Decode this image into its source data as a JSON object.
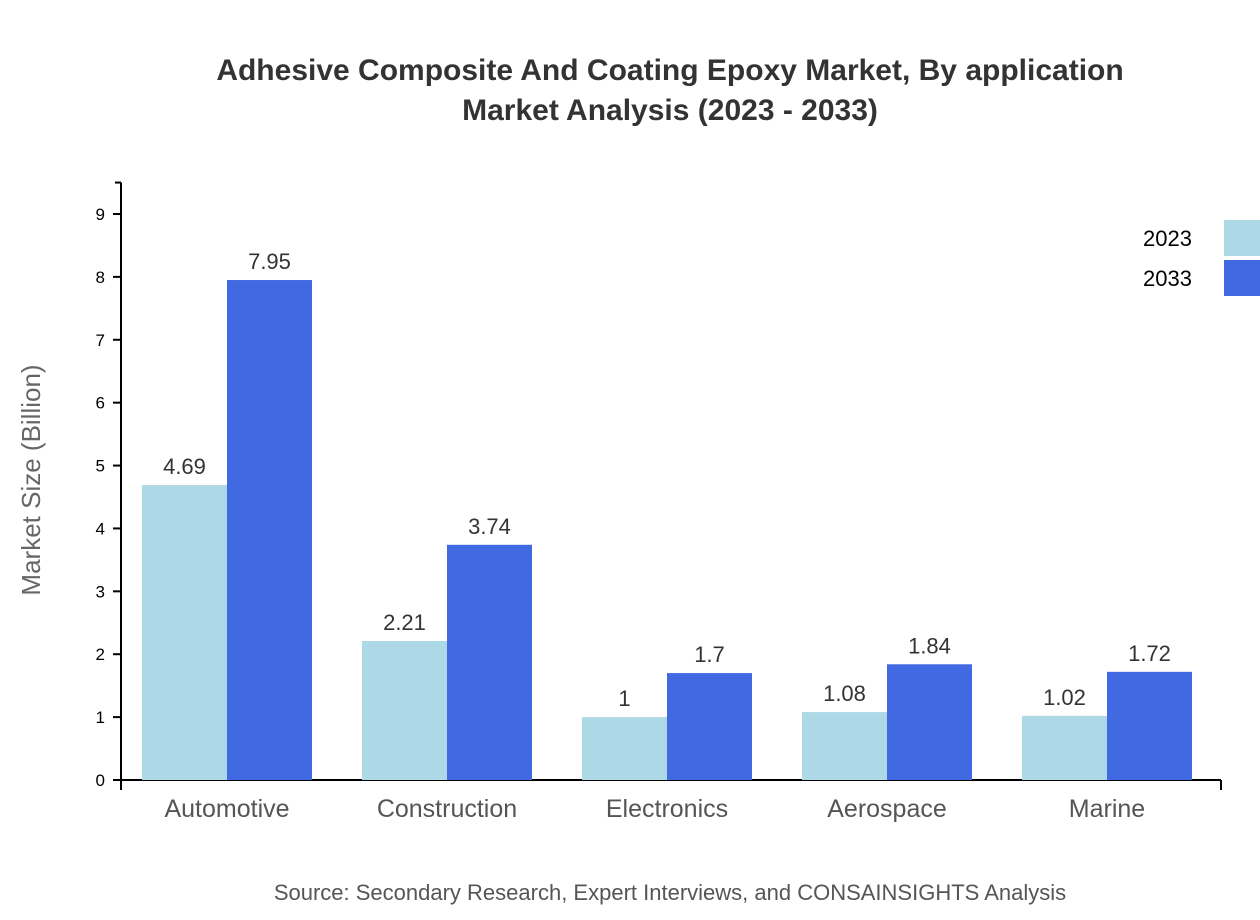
{
  "chart_data": {
    "type": "bar",
    "title": [
      "Adhesive Composite And Coating Epoxy Market, By application",
      "Market Analysis (2023 - 2033)"
    ],
    "ylabel": "Market Size (Billion)",
    "xlabel": "",
    "ylim": [
      0,
      9.5
    ],
    "yticks": [
      0,
      1,
      2,
      3,
      4,
      5,
      6,
      7,
      8,
      9
    ],
    "categories": [
      "Automotive",
      "Construction",
      "Electronics",
      "Aerospace",
      "Marine"
    ],
    "series": [
      {
        "name": "2023",
        "color": "#add8e6",
        "values": [
          4.69,
          2.21,
          1,
          1.08,
          1.02
        ]
      },
      {
        "name": "2033",
        "color": "#4169e1",
        "values": [
          7.95,
          3.74,
          1.7,
          1.84,
          1.72
        ]
      }
    ],
    "legend": "top-right",
    "grid": false,
    "source": "Source: Secondary Research, Expert Interviews, and CONSAINSIGHTS Analysis"
  }
}
